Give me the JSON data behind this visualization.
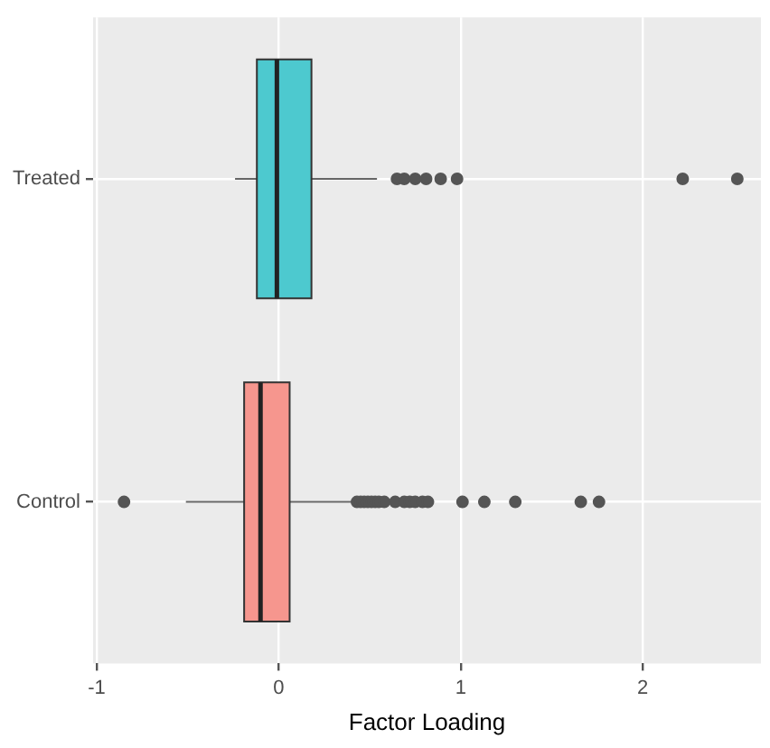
{
  "chart_data": {
    "type": "box",
    "xlabel": "Factor Loading",
    "categories": [
      "Treated",
      "Control"
    ],
    "orientation": "horizontal",
    "colors": [
      "#4dc9cf",
      "#f6968e"
    ],
    "boxes": [
      {
        "low": -0.24,
        "q1": -0.12,
        "median": -0.01,
        "q3": 0.18,
        "high": 0.54,
        "outliers": [
          0.65,
          0.69,
          0.75,
          0.81,
          0.89,
          0.98,
          2.22,
          2.52
        ]
      },
      {
        "low": -0.51,
        "q1": -0.19,
        "median": -0.1,
        "q3": 0.06,
        "high": 0.41,
        "outliers": [
          -0.85,
          0.43,
          0.45,
          0.47,
          0.49,
          0.51,
          0.53,
          0.55,
          0.58,
          0.64,
          0.69,
          0.72,
          0.75,
          0.79,
          0.82,
          1.01,
          1.13,
          1.3,
          1.66,
          1.76
        ]
      }
    ],
    "xlim": [
      -1.02,
      2.65
    ],
    "xticks": [
      -1,
      0,
      1,
      2
    ],
    "grid": true
  }
}
